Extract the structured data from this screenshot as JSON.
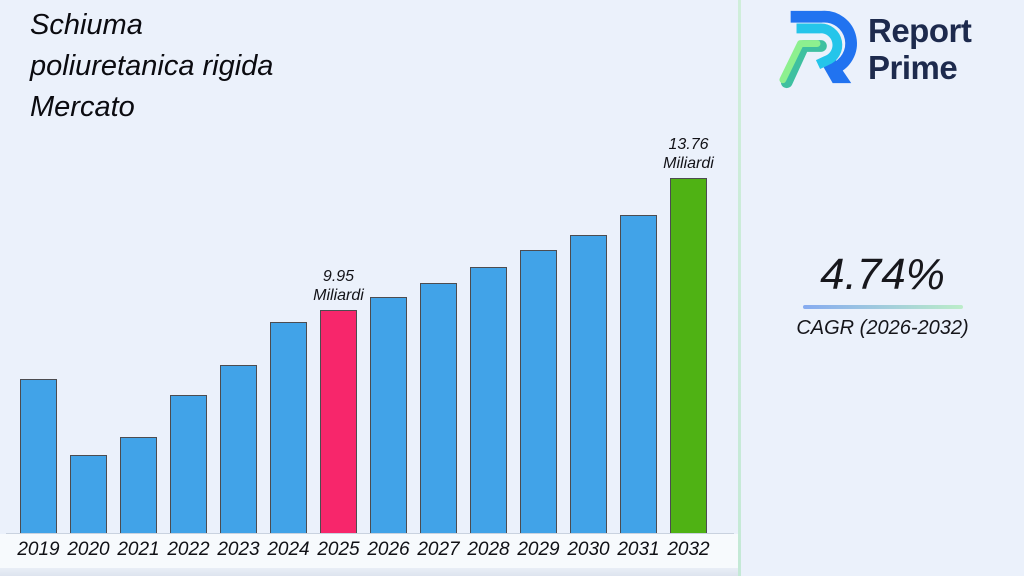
{
  "page": {
    "bg": "#ebf1fb",
    "divider_color": "#cfeeda"
  },
  "title": {
    "lines": [
      "Schiuma",
      "poliuretanica rigida",
      "Mercato"
    ]
  },
  "brand": {
    "logo": "report-prime-logo",
    "name_top": "Report",
    "name_bottom": "Prime",
    "text_color": "#1d2a4d",
    "logo_colors": {
      "blue": "#2173f0",
      "cyan": "#25c5ea",
      "green_light": "#8df08f",
      "green_teal": "#3ec0a0"
    }
  },
  "cagr": {
    "value": "4.74%",
    "label": "CAGR (2026-2032)",
    "underline": [
      "#86abf0",
      "#bcedc9"
    ]
  },
  "chart_data": {
    "type": "bar",
    "title": "Schiuma poliuretanica rigida Mercato",
    "unit": "Miliardi",
    "categories": [
      "2019",
      "2020",
      "2021",
      "2022",
      "2023",
      "2024",
      "2025",
      "2026",
      "2027",
      "2028",
      "2029",
      "2030",
      "2031",
      "2032"
    ],
    "values": [
      7.96,
      5.76,
      6.28,
      7.5,
      8.36,
      9.6,
      9.95,
      10.31,
      10.73,
      11.19,
      11.68,
      12.11,
      12.69,
      13.76
    ],
    "bar_color_default": "#41a3e8",
    "highlights": [
      {
        "category": "2025",
        "color": "#f7266b"
      },
      {
        "category": "2032",
        "color": "#4fb214"
      }
    ],
    "annotations": [
      {
        "category": "2025",
        "lines": [
          "9.95",
          "Miliardi"
        ]
      },
      {
        "category": "2032",
        "lines": [
          "13.76",
          "Miliardi"
        ]
      }
    ],
    "ylim": [
      3.51,
      14.85
    ],
    "xlabel": "",
    "ylabel": "",
    "grid": false,
    "legend": false
  }
}
